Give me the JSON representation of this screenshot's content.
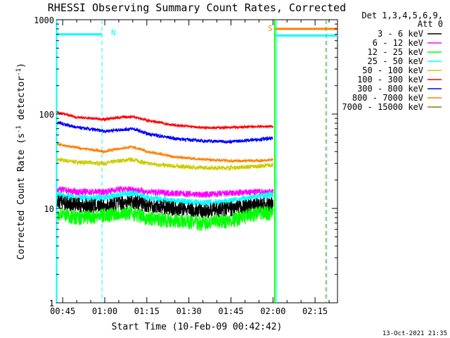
{
  "chart_data": {
    "type": "line",
    "title": "RHESSI Observing Summary Count Rates, Corrected",
    "xlabel": "Start Time (10-Feb-09 00:42:42)",
    "ylabel_main": "Corrected Count Rate (s",
    "ylabel_sup1": "-1",
    "ylabel_mid": " detector",
    "ylabel_sup2": "-1",
    "ylabel_end": ")",
    "y_scale": "log",
    "ylim": [
      1,
      1000
    ],
    "y_ticks": [
      {
        "value": 1,
        "label": "1"
      },
      {
        "value": 10,
        "label": "10"
      },
      {
        "value": 100,
        "label": "100"
      },
      {
        "value": 1000,
        "label": "1000"
      }
    ],
    "xlim": [
      "00:42:42",
      "02:23:00"
    ],
    "x_ticks": [
      {
        "time": "00:45",
        "label": "00:45"
      },
      {
        "time": "01:00",
        "label": "01:00"
      },
      {
        "time": "01:15",
        "label": "01:15"
      },
      {
        "time": "01:30",
        "label": "01:30"
      },
      {
        "time": "01:45",
        "label": "01:45"
      },
      {
        "time": "02:00",
        "label": "02:00"
      },
      {
        "time": "02:15",
        "label": "02:15"
      }
    ],
    "legend_header": [
      "Det 1,3,4,5,6,9,",
      "Att 0"
    ],
    "legend_placement": "right",
    "series": [
      {
        "name": "3 - 6 keV",
        "color": "#000000",
        "x": [
          "00:43",
          "00:50",
          "01:00",
          "01:05",
          "01:10",
          "01:15",
          "01:25",
          "01:35",
          "01:45",
          "01:55",
          "02:00"
        ],
        "y": [
          12,
          11,
          10.5,
          11.5,
          12,
          11,
          10,
          9.5,
          10,
          11,
          11
        ]
      },
      {
        "name": "6 - 12 keV",
        "color": "#ff00ff",
        "x": [
          "00:43",
          "00:50",
          "01:00",
          "01:05",
          "01:10",
          "01:15",
          "01:25",
          "01:35",
          "01:45",
          "01:55",
          "02:00"
        ],
        "y": [
          16,
          15,
          15,
          16,
          16,
          15,
          14.5,
          14,
          14.5,
          15,
          15
        ]
      },
      {
        "name": "12 - 25 keV",
        "color": "#00ff00",
        "x": [
          "00:43",
          "00:50",
          "01:00",
          "01:05",
          "01:10",
          "01:15",
          "01:25",
          "01:35",
          "01:45",
          "01:55",
          "02:00"
        ],
        "y": [
          9,
          8,
          8.5,
          9,
          9,
          8,
          7.5,
          7,
          7.5,
          9,
          9
        ]
      },
      {
        "name": "25 - 50 keV",
        "color": "#00ffff",
        "x": [
          "00:43",
          "00:50",
          "01:00",
          "01:05",
          "01:10",
          "01:15",
          "01:25",
          "01:35",
          "01:45",
          "01:55",
          "02:00"
        ],
        "y": [
          14,
          13,
          13,
          14,
          14.5,
          13,
          12,
          11.5,
          12,
          13.5,
          14
        ]
      },
      {
        "name": "50 - 100 keV",
        "color": "#cccc00",
        "x": [
          "00:43",
          "00:50",
          "01:00",
          "01:05",
          "01:10",
          "01:15",
          "01:25",
          "01:35",
          "01:45",
          "01:55",
          "02:00"
        ],
        "y": [
          33,
          31,
          30,
          32,
          33,
          30,
          28,
          27,
          27,
          28,
          29
        ]
      },
      {
        "name": "100 - 300 keV",
        "color": "#ff0000",
        "x": [
          "00:43",
          "00:50",
          "01:00",
          "01:05",
          "01:10",
          "01:15",
          "01:25",
          "01:35",
          "01:45",
          "01:55",
          "02:00"
        ],
        "y": [
          105,
          92,
          88,
          92,
          94,
          86,
          76,
          72,
          72,
          74,
          74
        ]
      },
      {
        "name": "300 - 800 keV",
        "color": "#0000ff",
        "x": [
          "00:43",
          "00:50",
          "01:00",
          "01:05",
          "01:10",
          "01:15",
          "01:25",
          "01:35",
          "01:45",
          "01:55",
          "02:00"
        ],
        "y": [
          82,
          72,
          66,
          68,
          70,
          62,
          55,
          52,
          51,
          54,
          55
        ]
      },
      {
        "name": "800 - 7000 keV",
        "color": "#ff8000",
        "x": [
          "00:43",
          "00:50",
          "01:00",
          "01:05",
          "01:10",
          "01:15",
          "01:25",
          "01:35",
          "01:45",
          "01:55",
          "02:00"
        ],
        "y": [
          48,
          44,
          40,
          43,
          45,
          40,
          35,
          33,
          32,
          32,
          33
        ]
      },
      {
        "name": "7000 - 15000 keV",
        "color": "#808000",
        "x": [],
        "y": []
      }
    ],
    "annotations": [
      {
        "text": "N",
        "color": "#00ffff"
      },
      {
        "text": "S",
        "color": "#ff8000"
      }
    ],
    "footer_date": "13-Oct-2021 21:35"
  }
}
